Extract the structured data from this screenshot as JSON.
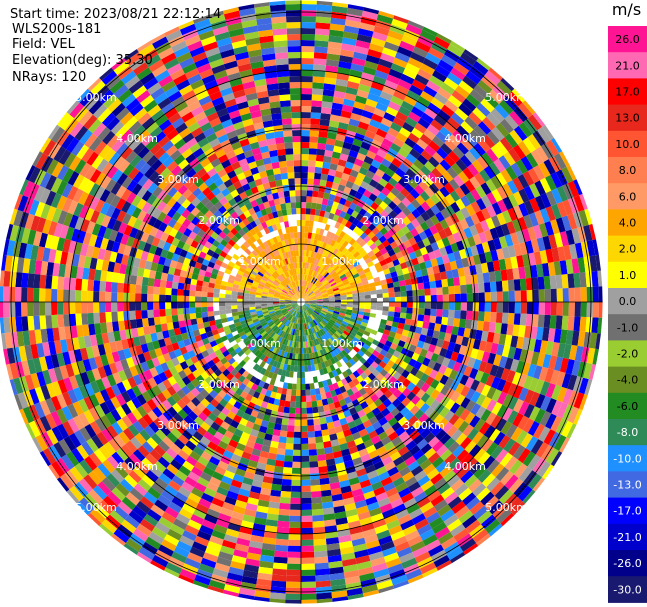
{
  "header": {
    "start_time": "Start time: 2023/08/21 22:12:14",
    "instrument": "WLS200s-181",
    "field": "Field: VEL",
    "elevation": "Elevation(deg): 35.30",
    "nrays": "NRays: 120"
  },
  "range_labels": {
    "r1": "1.00km",
    "r2": "2.00km",
    "r3": "3.00km",
    "r4": "4.00km",
    "r5": "5.00km"
  },
  "chart_data": {
    "type": "heatmap",
    "projection": "polar (PPI)",
    "field": "VEL",
    "units": "m/s",
    "n_rays": 120,
    "rings_km": [
      1,
      2,
      3,
      4,
      5
    ],
    "colorbar": {
      "title": "m/s",
      "range": [
        -30.0,
        30.0
      ],
      "ticks": [
        "26.0",
        "21.0",
        "17.0",
        "13.0",
        "10.0",
        "8.0",
        "6.0",
        "4.0",
        "2.0",
        "1.0",
        "0.0",
        "-1.0",
        "-2.0",
        "-4.0",
        "-6.0",
        "-8.0",
        "-10.0",
        "-13.0",
        "-17.0",
        "-21.0",
        "-26.0",
        "-30.0"
      ],
      "colors": [
        "#ff1493",
        "#ff69b4",
        "#ff0000",
        "#e8281c",
        "#ff5533",
        "#ff7f50",
        "#ff9966",
        "#ffa500",
        "#ffd700",
        "#ffff00",
        "#a0a0a0",
        "#707070",
        "#9acd32",
        "#6b8e23",
        "#228b22",
        "#2e8b57",
        "#1e90ff",
        "#4169e1",
        "#0000ff",
        "#0000cd",
        "#00008b",
        "#191970"
      ]
    },
    "description_regions": [
      {
        "sector": "north",
        "range_km": [
          0,
          1.4
        ],
        "velocity_ms": [
          2,
          6
        ]
      },
      {
        "sector": "south",
        "range_km": [
          0,
          1.4
        ],
        "velocity_ms": [
          -10,
          -2
        ]
      },
      {
        "sector": "east-west",
        "range_km": [
          0,
          1.4
        ],
        "velocity_ms": [
          -1,
          1
        ]
      },
      {
        "sector": "all",
        "range_km": [
          1.4,
          5.2
        ],
        "velocity_ms": "noise (-30 to 30)"
      }
    ]
  }
}
